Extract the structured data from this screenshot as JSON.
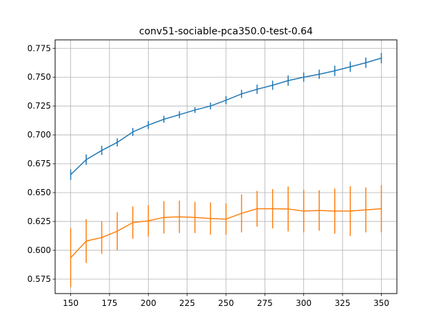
{
  "chart_data": {
    "type": "line",
    "title": "conv51-sociable-pca350.0-test-0.64",
    "xlabel": "",
    "ylabel": "",
    "xlim": [
      140,
      360
    ],
    "ylim": [
      0.5625,
      0.7823
    ],
    "xticks": [
      150,
      175,
      200,
      225,
      250,
      275,
      300,
      325,
      350
    ],
    "yticks": [
      0.575,
      0.6,
      0.625,
      0.65,
      0.675,
      0.7,
      0.725,
      0.75,
      0.775
    ],
    "grid": true,
    "x": [
      150,
      160,
      170,
      180,
      190,
      200,
      210,
      220,
      230,
      240,
      250,
      260,
      270,
      280,
      290,
      300,
      310,
      320,
      330,
      340,
      350
    ],
    "series": [
      {
        "color": "#1f77b4",
        "values": [
          0.6655,
          0.6785,
          0.6865,
          0.6935,
          0.7025,
          0.7085,
          0.7135,
          0.7175,
          0.7215,
          0.725,
          0.73,
          0.7355,
          0.7395,
          0.743,
          0.747,
          0.75,
          0.7525,
          0.7555,
          0.759,
          0.7625,
          0.7665
        ],
        "errors": [
          0.0045,
          0.0045,
          0.004,
          0.0035,
          0.0035,
          0.0035,
          0.003,
          0.003,
          0.0025,
          0.003,
          0.0035,
          0.0035,
          0.004,
          0.004,
          0.0045,
          0.004,
          0.004,
          0.0045,
          0.0045,
          0.0045,
          0.0045
        ]
      },
      {
        "color": "#ff7f0e",
        "values": [
          0.5935,
          0.608,
          0.611,
          0.6165,
          0.624,
          0.6255,
          0.6285,
          0.629,
          0.6285,
          0.6275,
          0.627,
          0.632,
          0.636,
          0.636,
          0.6358,
          0.634,
          0.6345,
          0.634,
          0.634,
          0.635,
          0.636
        ]
      }
    ],
    "orange_errors": [
      0.0255,
      0.019,
      0.014,
      0.0165,
      0.014,
      0.0135,
      0.014,
      0.014,
      0.0135,
      0.014,
      0.0135,
      0.0165,
      0.0155,
      0.017,
      0.0195,
      0.0185,
      0.0175,
      0.0195,
      0.0215,
      0.0195,
      0.0205
    ]
  }
}
